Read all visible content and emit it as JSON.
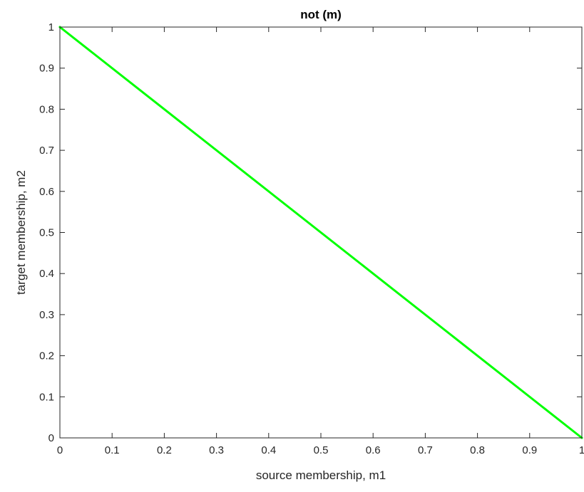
{
  "chart_data": {
    "type": "line",
    "title": "not (m)",
    "xlabel": "source membership, m1",
    "ylabel": "target membership, m2",
    "xlim": [
      0,
      1
    ],
    "ylim": [
      0,
      1
    ],
    "xticks": [
      "0",
      "0.1",
      "0.2",
      "0.3",
      "0.4",
      "0.5",
      "0.6",
      "0.7",
      "0.8",
      "0.9",
      "1"
    ],
    "yticks": [
      "0",
      "0.1",
      "0.2",
      "0.3",
      "0.4",
      "0.5",
      "0.6",
      "0.7",
      "0.8",
      "0.9",
      "1"
    ],
    "grid": false,
    "legend": "none",
    "series": [
      {
        "color": "#00ff00",
        "x": [
          0,
          1
        ],
        "y": [
          1,
          0
        ]
      }
    ]
  },
  "colors": {
    "line": "#00ff00",
    "axes": "#262626",
    "background": "#ffffff"
  }
}
